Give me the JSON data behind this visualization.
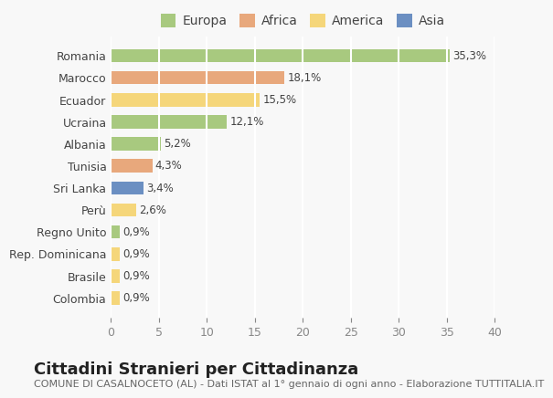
{
  "countries": [
    "Romania",
    "Marocco",
    "Ecuador",
    "Ucraina",
    "Albania",
    "Tunisia",
    "Sri Lanka",
    "Perù",
    "Regno Unito",
    "Rep. Dominicana",
    "Brasile",
    "Colombia"
  ],
  "values": [
    35.3,
    18.1,
    15.5,
    12.1,
    5.2,
    4.3,
    3.4,
    2.6,
    0.9,
    0.9,
    0.9,
    0.9
  ],
  "labels": [
    "35,3%",
    "18,1%",
    "15,5%",
    "12,1%",
    "5,2%",
    "4,3%",
    "3,4%",
    "2,6%",
    "0,9%",
    "0,9%",
    "0,9%",
    "0,9%"
  ],
  "colors": [
    "#a8c97f",
    "#e8a87c",
    "#f5d67a",
    "#a8c97f",
    "#a8c97f",
    "#e8a87c",
    "#6b8fc2",
    "#f5d67a",
    "#a8c97f",
    "#f5d67a",
    "#f5d67a",
    "#f5d67a"
  ],
  "continents": [
    "Europa",
    "Africa",
    "America",
    "Europa",
    "Europa",
    "Africa",
    "Asia",
    "America",
    "Europa",
    "America",
    "America",
    "America"
  ],
  "legend_labels": [
    "Europa",
    "Africa",
    "America",
    "Asia"
  ],
  "legend_colors": [
    "#a8c97f",
    "#e8a87c",
    "#f5d67a",
    "#6b8fc2"
  ],
  "title": "Cittadini Stranieri per Cittadinanza",
  "subtitle": "COMUNE DI CASALNOCETO (AL) - Dati ISTAT al 1° gennaio di ogni anno - Elaborazione TUTTITALIA.IT",
  "xlim": [
    0,
    40
  ],
  "xticks": [
    0,
    5,
    10,
    15,
    20,
    25,
    30,
    35,
    40
  ],
  "background_color": "#f8f8f8",
  "grid_color": "#ffffff",
  "bar_height": 0.6,
  "title_fontsize": 13,
  "subtitle_fontsize": 8,
  "label_fontsize": 8.5,
  "tick_fontsize": 9,
  "legend_fontsize": 10
}
